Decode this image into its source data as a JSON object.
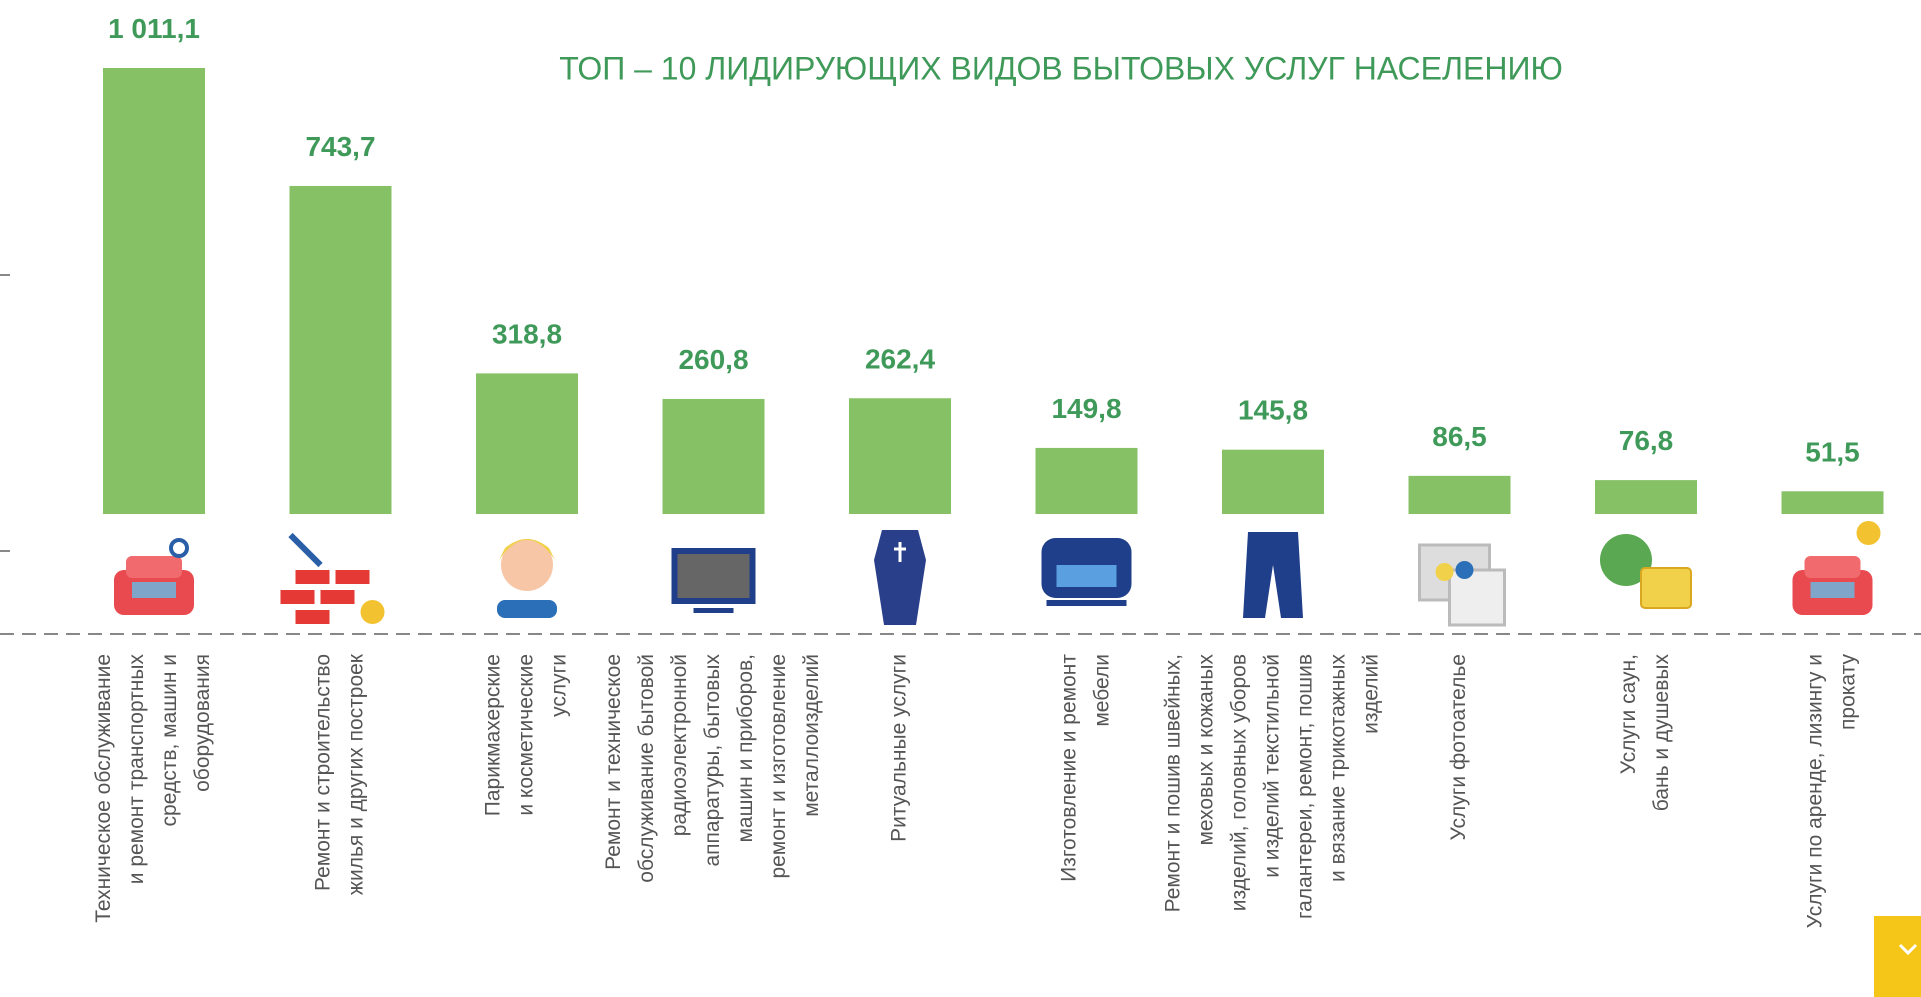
{
  "chart_data": {
    "type": "bar",
    "title": "ТОП – 10 ЛИДИРУЮЩИХ ВИДОВ БЫТОВЫХ УСЛУГ НАСЕЛЕНИЮ",
    "categories": [
      [
        "Техническое обслуживание",
        "и ремонт транспортных",
        "средств, машин и",
        "оборудования"
      ],
      [
        "Ремонт и строительство",
        "жилья и других построек"
      ],
      [
        "Парикмахерские",
        "и косметические",
        "услуги"
      ],
      [
        "Ремонт и техническое",
        "обслуживание бытовой",
        "радиоэлектронной",
        "аппаратуры, бытовых",
        "машин и приборов,",
        "ремонт и изготовление",
        "металлоизделий"
      ],
      [
        "Ритуальные услуги"
      ],
      [
        "Изготовление и ремонт",
        "мебели"
      ],
      [
        "Ремонт и пошив швейных,",
        "меховых и кожаных",
        "изделий,  головных уборов",
        "и изделий текстильной",
        "галантереи, ремонт, пошив",
        "и вязание трикотажных",
        "изделий"
      ],
      [
        "Услуги фотоателье"
      ],
      [
        "Услуги саун,",
        "бань и душевых"
      ],
      [
        "Услуги по аренде, лизингу и",
        "прокату"
      ]
    ],
    "values": [
      1011.1,
      743.7,
      318.8,
      260.8,
      262.4,
      149.8,
      145.8,
      86.5,
      76.8,
      51.5
    ],
    "value_labels": [
      "1 011,1",
      "743,7",
      "318,8",
      "260,8",
      "262,4",
      "149,8",
      "145,8",
      "86,5",
      "76,8",
      "51,5"
    ],
    "color": "#86c166"
  }
}
